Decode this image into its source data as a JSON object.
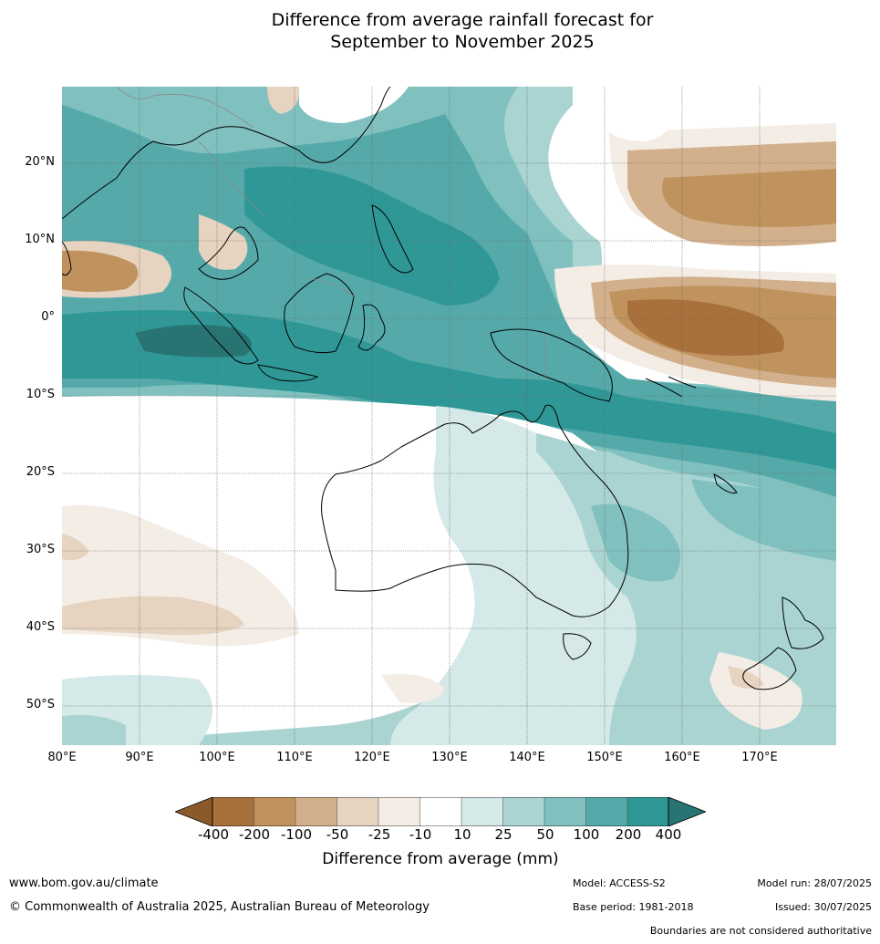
{
  "title": {
    "line1": "Difference from average rainfall forecast for",
    "line2": "September to November 2025"
  },
  "map": {
    "lat_labels": [
      "20°N",
      "10°N",
      "0°",
      "10°S",
      "20°S",
      "30°S",
      "40°S",
      "50°S"
    ],
    "lon_labels": [
      "80°E",
      "90°E",
      "100°E",
      "110°E",
      "120°E",
      "130°E",
      "140°E",
      "150°E",
      "160°E",
      "170°E"
    ],
    "colors": {
      "dry_extreme": "#8b5a2b",
      "dry_400": "#a8703a",
      "dry_200": "#c0935e",
      "dry_100": "#d3b08c",
      "dry_50": "#e6d3c0",
      "dry_25": "#f3ede6",
      "neutral": "#ffffff",
      "wet_10": "#d4e9e8",
      "wet_25": "#a9d4d2",
      "wet_50": "#80c1bf",
      "wet_100": "#55aaa9",
      "wet_200": "#2f9896",
      "wet_extreme": "#277473",
      "coast": "#000000",
      "border": "#888888",
      "grid": "#666666"
    }
  },
  "colorbar": {
    "ticks": [
      "-400",
      "-200",
      "-100",
      "-50",
      "-25",
      "-10",
      "10",
      "25",
      "50",
      "100",
      "200",
      "400"
    ],
    "label": "Difference from average (mm)"
  },
  "footer": {
    "website": "www.bom.gov.au/climate",
    "copyright": "© Commonwealth of Australia 2025, Australian Bureau of Meteorology",
    "model": "Model: ACCESS-S2",
    "base_period": "Base period: 1981-2018",
    "model_run": "Model run: 28/07/2025",
    "issued": "Issued: 30/07/2025",
    "boundaries": "Boundaries are not considered authoritative"
  }
}
